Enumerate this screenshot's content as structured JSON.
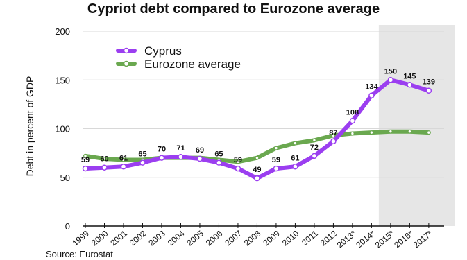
{
  "chart_data": {
    "type": "line",
    "title": "Cypriot debt compared to Eurozone average",
    "ylabel": "Debt in percent of GDP",
    "xlabel": "",
    "ylim": [
      0,
      200
    ],
    "yticks": [
      0,
      50,
      100,
      150,
      200
    ],
    "grid": true,
    "legend_position": "top-left",
    "forecast_shaded_from": "2015*",
    "categories": [
      "1999",
      "2000",
      "2001",
      "2002",
      "2003",
      "2004",
      "2005",
      "2006",
      "2007",
      "2008",
      "2009",
      "2010",
      "2011",
      "2012",
      "2013*",
      "2014*",
      "2015*",
      "2016*",
      "2017*"
    ],
    "series": [
      {
        "name": "Cyprus",
        "color": "#9b3ef0",
        "values": [
          59,
          60,
          61,
          65,
          70,
          71,
          69,
          65,
          59,
          49,
          59,
          61,
          72,
          87,
          108,
          134,
          150,
          145,
          139
        ],
        "labels": [
          "59",
          "60",
          "61",
          "65",
          "70",
          "71",
          "69",
          "65",
          "59",
          "49",
          "59",
          "61",
          "72",
          "87",
          "108",
          "134",
          "150",
          "145",
          "139"
        ]
      },
      {
        "name": "Eurozone average",
        "color": "#6aa84f",
        "values": [
          72,
          69,
          68,
          68,
          70,
          70,
          70,
          68,
          66,
          70,
          80,
          85,
          88,
          93,
          95,
          96,
          97,
          97,
          96
        ]
      }
    ],
    "source": "Source: Eurostat"
  },
  "colors": {
    "shade": "#e6e6e6",
    "grid": "#d8d8d8",
    "axis": "#111111"
  }
}
